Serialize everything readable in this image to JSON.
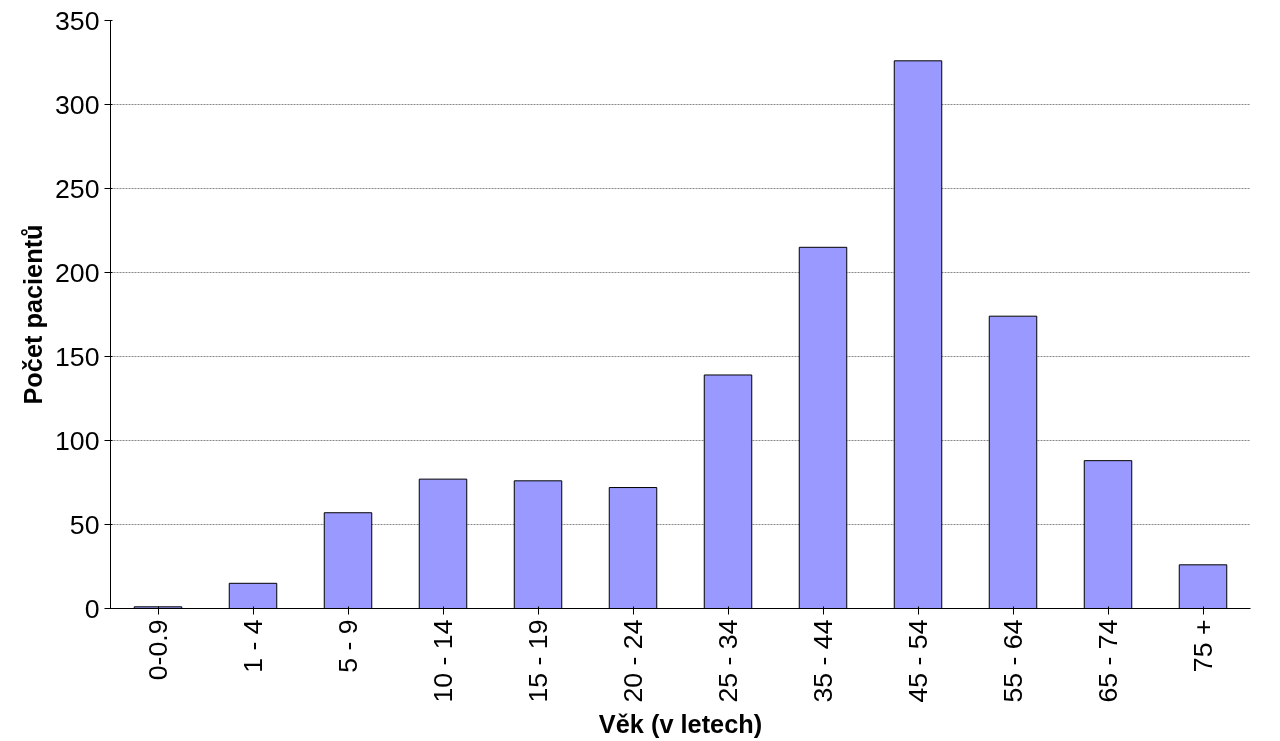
{
  "chart_data": {
    "type": "bar",
    "xlabel": "Věk (v letech)",
    "ylabel": "Počet pacientů",
    "categories": [
      "0-0.9",
      "1 - 4",
      "5 - 9",
      "10 - 14",
      "15 - 19",
      "20 - 24",
      "25 - 34",
      "35 - 44",
      "45 - 54",
      "55 - 64",
      "65 - 74",
      "75 +"
    ],
    "values": [
      1,
      15,
      57,
      77,
      76,
      72,
      139,
      215,
      326,
      174,
      88,
      26
    ],
    "color": "#9999ff",
    "ylim": [
      0,
      350
    ],
    "yticks": [
      0,
      50,
      100,
      150,
      200,
      250,
      300,
      350
    ],
    "grid": "y"
  }
}
